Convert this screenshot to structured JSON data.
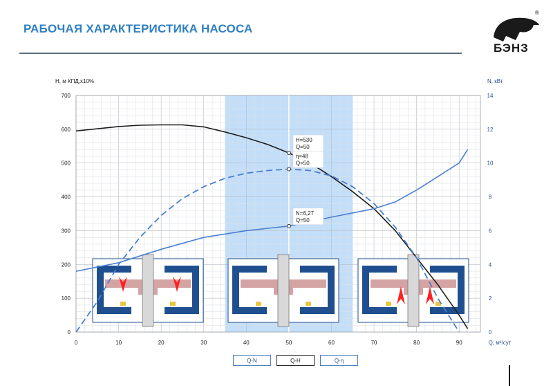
{
  "header": {
    "title": "РАБОЧАЯ ХАРАКТЕРИСТИКА НАСОСА",
    "logo_text": "БЭНЗ",
    "logo_mark": "®"
  },
  "colors": {
    "title": "#2e7fc1",
    "head_curve": "#1e1e1e",
    "power_curve": "#4a7fd0",
    "eff_curve": "#4a7fd0",
    "highlight": "#b9d8f7",
    "pump_blue": "#1f4f8f",
    "pump_red": "#c98c8c",
    "arrow": "#ff2020"
  },
  "icons": [
    "bhenz-logo-icon",
    "pump-cross-section-icon"
  ],
  "chart_data": {
    "type": "line",
    "ylabel_left": "Н, м  КПД,х10%",
    "ylabel_right": "N, кВт",
    "xlabel": "Q, м³/сут",
    "xlim": [
      0,
      95
    ],
    "ylim_left": [
      0,
      700
    ],
    "ylim_right": [
      0,
      14
    ],
    "x_ticks": [
      0,
      10,
      20,
      30,
      40,
      50,
      60,
      70,
      80,
      90
    ],
    "y_ticks_left": [
      0,
      100,
      200,
      300,
      400,
      500,
      600,
      700
    ],
    "y_ticks_right": [
      0,
      2,
      4,
      6,
      8,
      10,
      12,
      14
    ],
    "grid": true,
    "highlight_band": [
      35,
      65
    ],
    "series": [
      {
        "name": "Q-H",
        "axis": "left",
        "style": "solid",
        "x": [
          0,
          10,
          15,
          20,
          25,
          30,
          35,
          40,
          45,
          50,
          55,
          60,
          65,
          70,
          75,
          80,
          85,
          90,
          92
        ],
        "y": [
          595,
          608,
          612,
          613,
          613,
          607,
          592,
          575,
          555,
          530,
          500,
          460,
          415,
          365,
          300,
          220,
          140,
          50,
          10
        ]
      },
      {
        "name": "Q-η",
        "axis": "left",
        "style": "dashed",
        "x": [
          0,
          5,
          10,
          15,
          20,
          25,
          30,
          35,
          40,
          45,
          50,
          55,
          60,
          65,
          70,
          75,
          80,
          85,
          90
        ],
        "y": [
          0,
          90,
          200,
          280,
          345,
          395,
          430,
          455,
          470,
          478,
          482,
          478,
          462,
          430,
          380,
          310,
          220,
          100,
          0
        ]
      },
      {
        "name": "Q-N",
        "axis": "right",
        "style": "solid",
        "x": [
          0,
          10,
          20,
          30,
          40,
          50,
          60,
          70,
          75,
          80,
          85,
          90,
          92
        ],
        "y": [
          3.6,
          4.1,
          4.9,
          5.6,
          6.0,
          6.27,
          6.8,
          7.3,
          7.7,
          8.4,
          9.2,
          10.0,
          10.8
        ]
      }
    ],
    "annotations": [
      {
        "x": 50,
        "y": 530,
        "axis": "left",
        "lines": [
          "H=530",
          "Q=50"
        ]
      },
      {
        "x": 50,
        "y": 482,
        "axis": "left",
        "lines": [
          "η=48",
          "Q=50"
        ]
      },
      {
        "x": 50,
        "y": 6.27,
        "axis": "right",
        "lines": [
          "N=6,27",
          "Q=50"
        ]
      }
    ],
    "legend": [
      "Q-N",
      "Q-H",
      "Q-η"
    ]
  }
}
